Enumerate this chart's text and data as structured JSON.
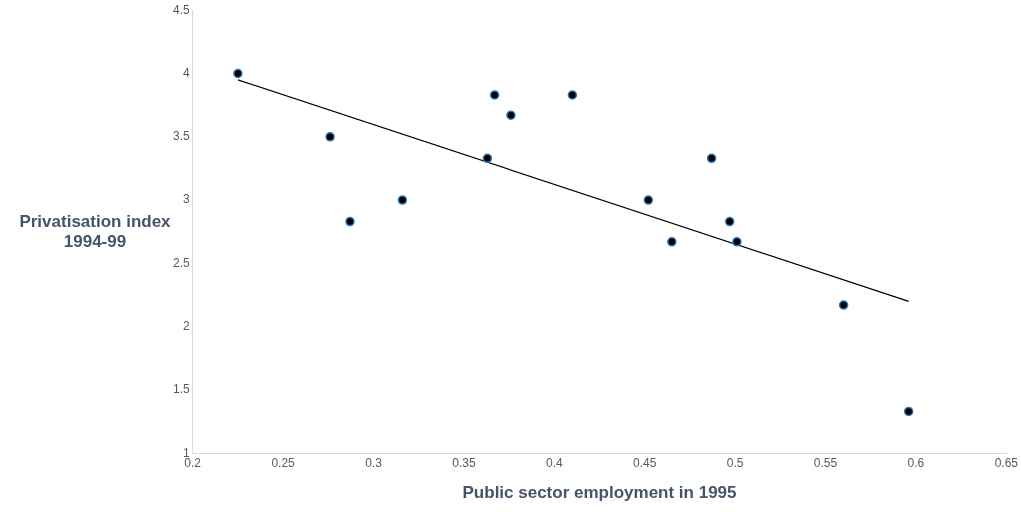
{
  "chart_data": {
    "type": "scatter",
    "xlabel": "Public sector employment in 1995",
    "ylabel": "Privatisation index 1994-99",
    "xlim": [
      0.2,
      0.65
    ],
    "xticks": [
      0.2,
      0.25,
      0.3,
      0.35,
      0.4,
      0.45,
      0.5,
      0.55,
      0.6,
      0.65
    ],
    "ylim": [
      1,
      4.5
    ],
    "yticks": [
      1,
      1.5,
      2,
      2.5,
      3,
      3.5,
      4,
      4.5
    ],
    "grid": false,
    "legend": false,
    "series": [
      {
        "marker": "circle",
        "color": "#000000",
        "x": [
          0.225,
          0.276,
          0.287,
          0.316,
          0.363,
          0.367,
          0.376,
          0.41,
          0.452,
          0.465,
          0.487,
          0.497,
          0.501,
          0.56,
          0.596
        ],
        "values": [
          4.0,
          3.5,
          2.83,
          3.0,
          3.33,
          3.83,
          3.67,
          3.83,
          3.0,
          2.67,
          3.33,
          2.83,
          2.67,
          2.17,
          1.33
        ]
      },
      {
        "type": "line",
        "color": "#000000",
        "x": [
          0.225,
          0.596
        ],
        "values": [
          3.95,
          2.2
        ]
      }
    ]
  }
}
